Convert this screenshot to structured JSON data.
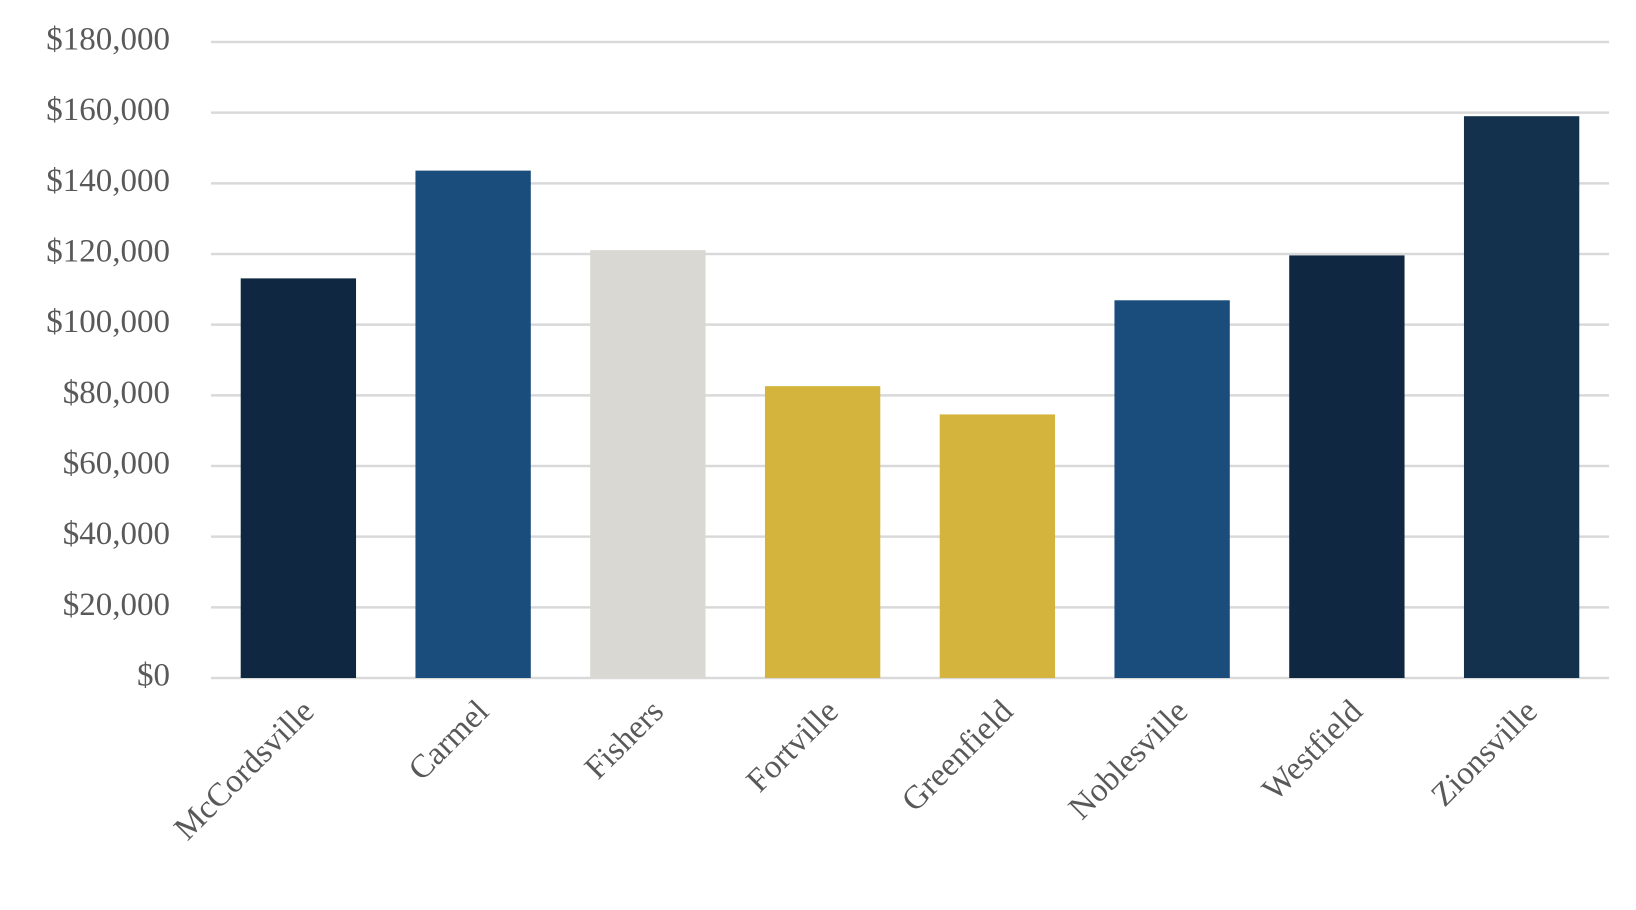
{
  "chart_data": {
    "type": "bar",
    "categories": [
      "McCordsville",
      "Carmel",
      "Fishers",
      "Fortville",
      "Greenfield",
      "Noblesville",
      "Westfield",
      "Zionsville"
    ],
    "values": [
      113100,
      143600,
      121100,
      82600,
      74600,
      106900,
      119600,
      159000
    ],
    "colors": [
      "#0f2740",
      "#1b4d7c",
      "#d9d8d2",
      "#d4b43c",
      "#d4b43c",
      "#1b4d7c",
      "#0f2740",
      "#13314d"
    ],
    "ylim": [
      0,
      180000
    ],
    "yticks": [
      {
        "value": 0,
        "label": "$0"
      },
      {
        "value": 20000,
        "label": "$20,000"
      },
      {
        "value": 40000,
        "label": "$40,000"
      },
      {
        "value": 60000,
        "label": "$60,000"
      },
      {
        "value": 80000,
        "label": "$80,000"
      },
      {
        "value": 100000,
        "label": "$100,000"
      },
      {
        "value": 120000,
        "label": "$120,000"
      },
      {
        "value": 140000,
        "label": "$140,000"
      },
      {
        "value": 160000,
        "label": "$160,000"
      },
      {
        "value": 180000,
        "label": "$180,000"
      }
    ],
    "grid": true
  }
}
